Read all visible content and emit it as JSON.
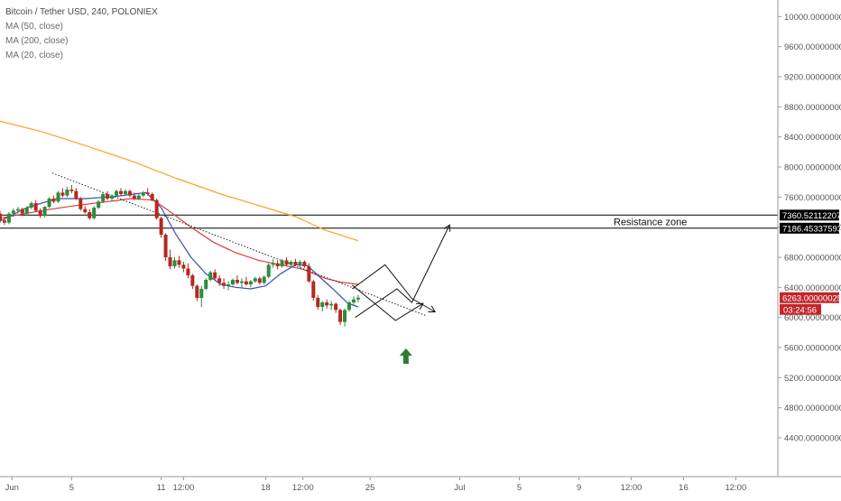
{
  "header": {
    "symbol": "Bitcoin / Tether USD, 240, POLONIEX",
    "indicators": [
      "MA (50, close)",
      "MA (200, close)",
      "MA (20, close)"
    ]
  },
  "colors": {
    "up_candle": "#2e8b3e",
    "down_candle": "#b22a1f",
    "ma200": "#f5a623",
    "ma50": "#e23b3b",
    "ma20": "#3b4fb8",
    "resistance_line": "#000000",
    "current_price_bg": "#c4262b",
    "arrow_up": "#2e7d32"
  },
  "chart_data": {
    "type": "candlestick",
    "title": "",
    "y_axis": {
      "min": 4100,
      "max": 10100,
      "ticks": [
        "10000.00000000",
        "9600.00000000",
        "9200.00000000",
        "8800.00000000",
        "8400.00000000",
        "8000.00000000",
        "7600.00000000",
        "7200.00000000",
        "6800.00000000",
        "6400.00000000",
        "6000.00000000",
        "5600.00000000",
        "5200.00000000",
        "4800.00000000",
        "4400.00000000"
      ],
      "tick_values": [
        10000,
        9600,
        9200,
        8800,
        8400,
        8000,
        7600,
        7200,
        6800,
        6400,
        6000,
        5600,
        5200,
        4800,
        4400
      ]
    },
    "x_axis": {
      "labels": [
        "Jun",
        "5",
        "11",
        "12:00",
        "18",
        "12:00",
        "25",
        "Jul",
        "5",
        "9",
        "12:00",
        "16",
        "12:00"
      ],
      "label_times": [
        0,
        4,
        10,
        11.5,
        17,
        19.5,
        24,
        30,
        34,
        38,
        41.5,
        45,
        48.5
      ],
      "min": -0.8,
      "max": 51.2,
      "grid": false
    },
    "resistance_zone": {
      "label": "Resistance zone",
      "upper": 7360.52112207,
      "upper_label": "7360.52112207",
      "lower": 7186.45337593,
      "lower_label": "7186.45337593"
    },
    "current_price": {
      "value": 6263.00000025,
      "label": "6263.00000025",
      "countdown": "03:24:56"
    },
    "candles": [
      [
        -0.8,
        7380,
        7420,
        7260,
        7290
      ],
      [
        -0.5,
        7290,
        7330,
        7230,
        7260
      ],
      [
        -0.2,
        7260,
        7400,
        7240,
        7380
      ],
      [
        0.1,
        7380,
        7450,
        7340,
        7420
      ],
      [
        0.4,
        7420,
        7470,
        7380,
        7440
      ],
      [
        0.7,
        7440,
        7460,
        7350,
        7380
      ],
      [
        1.0,
        7380,
        7480,
        7360,
        7460
      ],
      [
        1.3,
        7460,
        7540,
        7440,
        7520
      ],
      [
        1.6,
        7520,
        7560,
        7400,
        7420
      ],
      [
        1.9,
        7420,
        7450,
        7320,
        7350
      ],
      [
        2.2,
        7350,
        7480,
        7330,
        7470
      ],
      [
        2.5,
        7470,
        7600,
        7450,
        7580
      ],
      [
        2.8,
        7580,
        7620,
        7520,
        7540
      ],
      [
        3.1,
        7540,
        7680,
        7520,
        7660
      ],
      [
        3.4,
        7660,
        7720,
        7600,
        7620
      ],
      [
        3.7,
        7620,
        7740,
        7600,
        7700
      ],
      [
        4.0,
        7700,
        7760,
        7650,
        7680
      ],
      [
        4.3,
        7680,
        7720,
        7560,
        7580
      ],
      [
        4.6,
        7580,
        7600,
        7420,
        7440
      ],
      [
        4.9,
        7440,
        7480,
        7380,
        7400
      ],
      [
        5.2,
        7400,
        7440,
        7300,
        7320
      ],
      [
        5.5,
        7320,
        7480,
        7300,
        7460
      ],
      [
        5.8,
        7460,
        7560,
        7440,
        7540
      ],
      [
        6.1,
        7540,
        7660,
        7520,
        7640
      ],
      [
        6.4,
        7640,
        7680,
        7560,
        7580
      ],
      [
        6.7,
        7580,
        7640,
        7540,
        7620
      ],
      [
        7.0,
        7620,
        7700,
        7600,
        7680
      ],
      [
        7.3,
        7680,
        7720,
        7620,
        7640
      ],
      [
        7.6,
        7640,
        7700,
        7620,
        7680
      ],
      [
        7.9,
        7680,
        7700,
        7600,
        7620
      ],
      [
        8.2,
        7620,
        7660,
        7560,
        7580
      ],
      [
        8.5,
        7580,
        7640,
        7560,
        7620
      ],
      [
        8.8,
        7620,
        7680,
        7600,
        7660
      ],
      [
        9.1,
        7660,
        7720,
        7620,
        7640
      ],
      [
        9.4,
        7640,
        7660,
        7540,
        7560
      ],
      [
        9.7,
        7560,
        7580,
        7300,
        7320
      ],
      [
        10.0,
        7320,
        7340,
        7060,
        7100
      ],
      [
        10.3,
        7100,
        7120,
        6750,
        6800
      ],
      [
        10.6,
        6800,
        6900,
        6640,
        6680
      ],
      [
        10.9,
        6680,
        6800,
        6650,
        6760
      ],
      [
        11.2,
        6760,
        6820,
        6660,
        6700
      ],
      [
        11.5,
        6700,
        6740,
        6600,
        6650
      ],
      [
        11.8,
        6650,
        6720,
        6520,
        6560
      ],
      [
        12.1,
        6560,
        6580,
        6380,
        6420
      ],
      [
        12.4,
        6420,
        6440,
        6220,
        6260
      ],
      [
        12.7,
        6260,
        6420,
        6140,
        6380
      ],
      [
        13.0,
        6380,
        6520,
        6360,
        6500
      ],
      [
        13.3,
        6500,
        6620,
        6480,
        6600
      ],
      [
        13.6,
        6600,
        6640,
        6500,
        6520
      ],
      [
        13.9,
        6520,
        6560,
        6420,
        6460
      ],
      [
        14.2,
        6460,
        6520,
        6380,
        6420
      ],
      [
        14.5,
        6420,
        6480,
        6360,
        6440
      ],
      [
        14.8,
        6440,
        6520,
        6420,
        6500
      ],
      [
        15.1,
        6500,
        6560,
        6440,
        6460
      ],
      [
        15.4,
        6460,
        6520,
        6400,
        6480
      ],
      [
        15.7,
        6480,
        6540,
        6420,
        6440
      ],
      [
        16.0,
        6440,
        6500,
        6400,
        6480
      ],
      [
        16.3,
        6480,
        6540,
        6460,
        6520
      ],
      [
        16.6,
        6520,
        6540,
        6440,
        6460
      ],
      [
        16.9,
        6460,
        6560,
        6440,
        6540
      ],
      [
        17.2,
        6540,
        6720,
        6520,
        6700
      ],
      [
        17.5,
        6700,
        6780,
        6660,
        6720
      ],
      [
        17.8,
        6720,
        6760,
        6640,
        6680
      ],
      [
        18.1,
        6680,
        6780,
        6660,
        6760
      ],
      [
        18.4,
        6760,
        6800,
        6680,
        6700
      ],
      [
        18.7,
        6700,
        6760,
        6660,
        6740
      ],
      [
        19.0,
        6740,
        6780,
        6680,
        6700
      ],
      [
        19.3,
        6700,
        6760,
        6660,
        6740
      ],
      [
        19.6,
        6740,
        6760,
        6660,
        6680
      ],
      [
        19.9,
        6680,
        6720,
        6460,
        6480
      ],
      [
        20.2,
        6480,
        6500,
        6220,
        6260
      ],
      [
        20.5,
        6260,
        6300,
        6100,
        6140
      ],
      [
        20.8,
        6140,
        6220,
        6080,
        6200
      ],
      [
        21.1,
        6200,
        6240,
        6120,
        6160
      ],
      [
        21.4,
        6160,
        6220,
        6100,
        6180
      ],
      [
        21.7,
        6180,
        6200,
        6060,
        6100
      ],
      [
        22.0,
        6100,
        6120,
        5900,
        5940
      ],
      [
        22.3,
        5940,
        6120,
        5880,
        6100
      ],
      [
        22.6,
        6100,
        6220,
        6080,
        6200
      ],
      [
        22.9,
        6200,
        6280,
        6160,
        6240
      ],
      [
        23.2,
        6240,
        6300,
        6200,
        6263
      ]
    ],
    "moving_averages": [
      {
        "name": "MA (200, close)",
        "x": [
          -0.8,
          2,
          5,
          8,
          11,
          14,
          17,
          19,
          21,
          23.2
        ],
        "y": [
          8610,
          8470,
          8280,
          8080,
          7850,
          7640,
          7460,
          7340,
          7160,
          7020
        ]
      },
      {
        "name": "MA (50, close)",
        "x": [
          -0.8,
          2,
          4,
          6,
          8,
          9.5,
          10.5,
          12,
          13.5,
          15,
          16.5,
          18,
          19.5,
          21,
          22,
          23.2
        ],
        "y": [
          7320,
          7420,
          7480,
          7530,
          7580,
          7560,
          7420,
          7200,
          7000,
          6860,
          6760,
          6700,
          6640,
          6520,
          6470,
          6440
        ]
      },
      {
        "name": "MA (20, close)",
        "x": [
          -0.8,
          1,
          3,
          5,
          7,
          9,
          10,
          11,
          12,
          13,
          14,
          15,
          16,
          17,
          18,
          19,
          19.8,
          20.5,
          21.5,
          22.5,
          23.2
        ],
        "y": [
          7280,
          7460,
          7580,
          7580,
          7610,
          7660,
          7460,
          7100,
          6800,
          6580,
          6440,
          6400,
          6380,
          6420,
          6580,
          6700,
          6690,
          6560,
          6380,
          6190,
          6140
        ]
      }
    ],
    "trendline": {
      "x": [
        2.7,
        27.8
      ],
      "y": [
        7920,
        6020
      ]
    },
    "projections": [
      [
        [
          23.0,
          6000
        ],
        [
          25.8,
          6380
        ],
        [
          26.8,
          6200
        ],
        [
          29.3,
          7220
        ]
      ],
      [
        [
          22.8,
          6380
        ],
        [
          25.0,
          6700
        ],
        [
          26.8,
          6250
        ],
        [
          28.3,
          6080
        ]
      ],
      [
        [
          22.8,
          6430
        ],
        [
          25.7,
          5960
        ],
        [
          27.5,
          6180
        ]
      ]
    ],
    "up_arrow": {
      "x": 26.4,
      "y": 5480
    }
  }
}
